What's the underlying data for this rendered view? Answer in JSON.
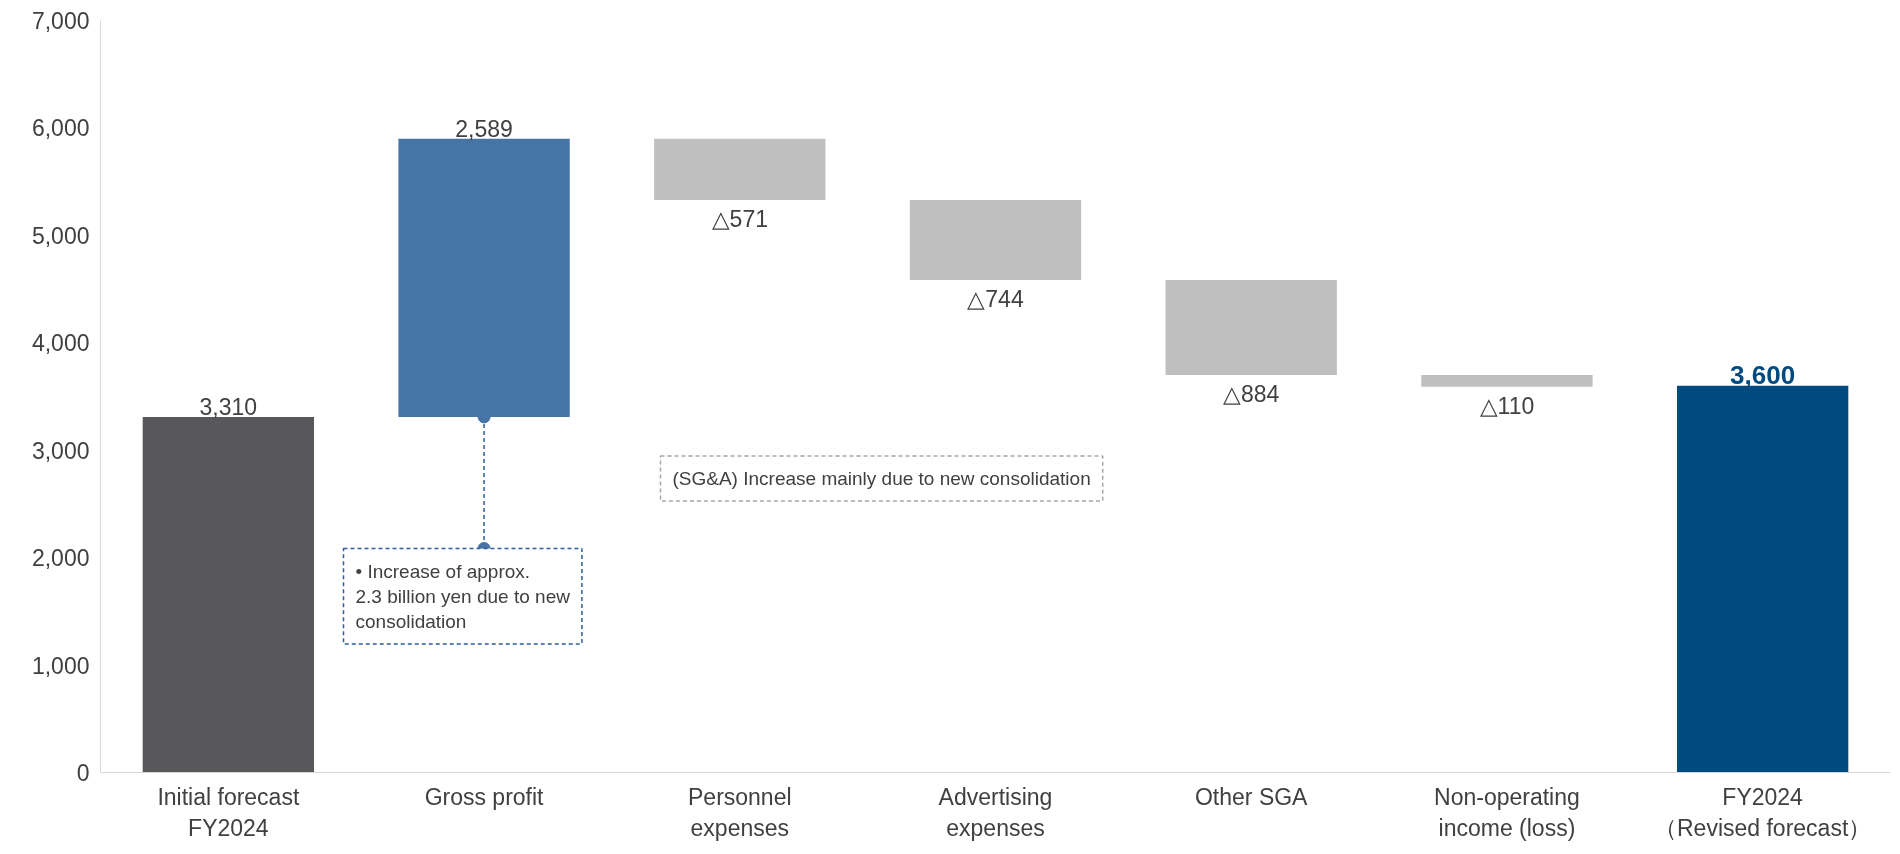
{
  "chart_data": {
    "type": "bar",
    "categories": [
      "Initial forecast\nFY2024",
      "Gross profit",
      "Personnel\nexpenses",
      "Advertising\nexpenses",
      "Other SGA",
      "Non-operating\nincome (loss)",
      "FY2024\n（Revised forecast）"
    ],
    "values": [
      3310,
      2589,
      -571,
      -744,
      -884,
      -110,
      3600
    ],
    "base": [
      0,
      3310,
      5899,
      5328,
      4584,
      3700,
      0
    ],
    "colors": [
      "#58585a",
      "#4674a5",
      "#bfbfbf",
      "#bfbfbf",
      "#bfbfbf",
      "#bfbfbf",
      "#004a80"
    ],
    "value_labels": [
      "3,310",
      "2,589",
      "△571",
      "△744",
      "△884",
      "△110",
      "3,600"
    ],
    "ylim": [
      0,
      7000
    ],
    "yticks": [
      {
        "value": 0,
        "label": "0"
      },
      {
        "value": 1000,
        "label": "1,000"
      },
      {
        "value": 2000,
        "label": "2,000"
      },
      {
        "value": 3000,
        "label": "3,000"
      },
      {
        "value": 4000,
        "label": "4,000"
      },
      {
        "value": 5000,
        "label": "5,000"
      },
      {
        "value": 6000,
        "label": "6,000"
      },
      {
        "value": 7000,
        "label": "7,000"
      }
    ],
    "grid": false,
    "annotations": [
      {
        "text": "• Increase of approx.\n2.3 billion yen due to new\nconsolidation",
        "x": "Gross profit",
        "y": 3310
      },
      "(SG&A) Increase mainly due to new consolidation"
    ]
  }
}
